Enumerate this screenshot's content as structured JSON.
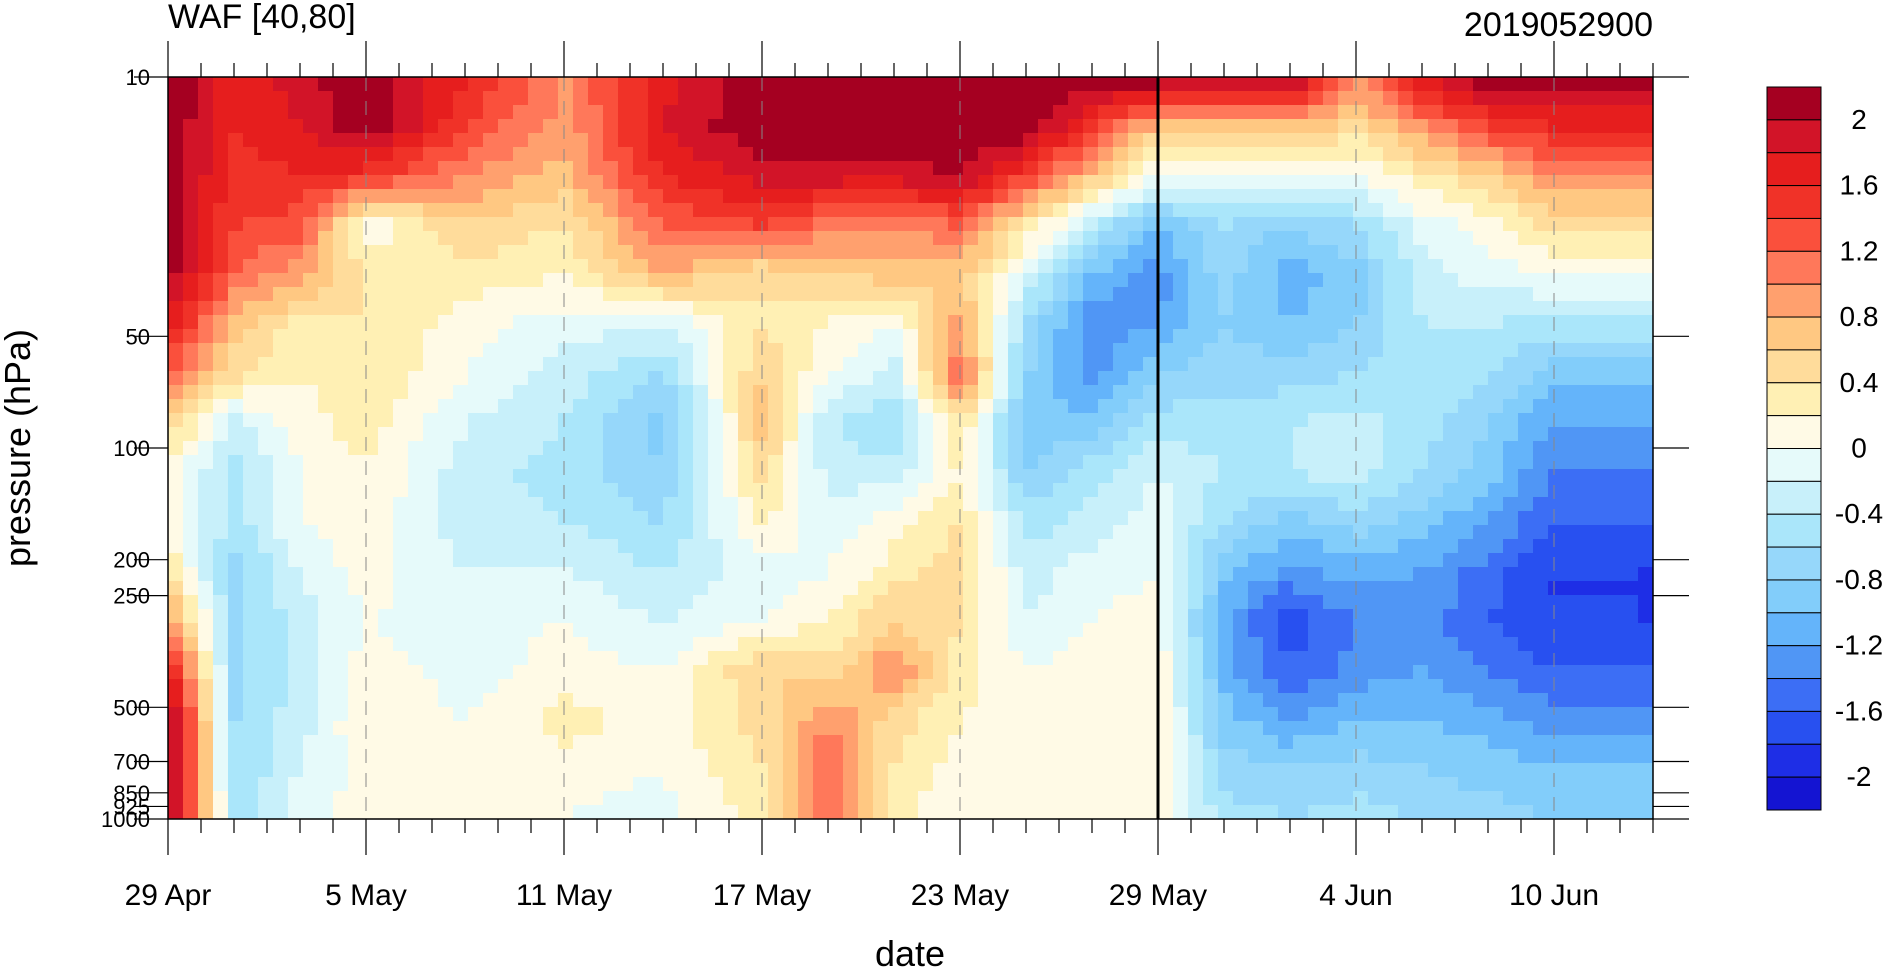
{
  "chart_data": {
    "type": "heatmap",
    "title": "WAF [40,80]",
    "subtitle": "2019052900",
    "xlabel": "date",
    "ylabel": "pressure (hPa)",
    "x_tick_labels": [
      "29 Apr",
      "5 May",
      "11 May",
      "17 May",
      "23 May",
      "29 May",
      "4 Jun",
      "10 Jun"
    ],
    "x_tick_days": [
      0,
      6,
      12,
      18,
      24,
      30,
      36,
      42
    ],
    "x_range_days": [
      0,
      45
    ],
    "y_scale": "log",
    "y_tick_labels": [
      "10",
      "50",
      "100",
      "200",
      "250",
      "500",
      "700",
      "850",
      "925",
      "1000"
    ],
    "y_tick_values": [
      10,
      50,
      100,
      200,
      250,
      500,
      700,
      850,
      925,
      1000
    ],
    "y_range": [
      10,
      1000
    ],
    "y_inverted": true,
    "forecast_line_day": 30,
    "colorbar": {
      "labels": [
        "2",
        "1.6",
        "1.2",
        "0.8",
        "0.4",
        "0",
        "-0.4",
        "-0.8",
        "-1.2",
        "-1.6",
        "-2"
      ],
      "label_values": [
        2,
        1.6,
        1.2,
        0.8,
        0.4,
        0,
        -0.4,
        -0.8,
        -1.2,
        -1.6,
        -2
      ],
      "levels": [
        -2.2,
        -2.0,
        -1.8,
        -1.6,
        -1.4,
        -1.2,
        -1.0,
        -0.8,
        -0.6,
        -0.4,
        -0.2,
        0,
        0.2,
        0.4,
        0.6,
        0.8,
        1.0,
        1.2,
        1.4,
        1.6,
        1.8,
        2.0,
        2.2
      ],
      "colors": [
        "#1414d2",
        "#1e2ee6",
        "#2850f0",
        "#3c6ef5",
        "#5096f5",
        "#64b4fa",
        "#82cdfa",
        "#96d7fa",
        "#aae6fa",
        "#c8f0fa",
        "#e6fafa",
        "#fffae6",
        "#fff0b4",
        "#ffdc9b",
        "#ffc882",
        "#ffa06e",
        "#ff785a",
        "#fa503c",
        "#f03228",
        "#e61e1e",
        "#d21428",
        "#a50021"
      ]
    },
    "waf_profiles": {
      "pressure_levels": [
        10,
        30,
        50,
        70,
        100,
        200,
        250,
        400,
        500,
        700,
        850,
        925,
        1000
      ],
      "days": [
        0,
        2,
        4,
        6,
        9,
        12,
        15,
        18,
        20,
        22,
        24,
        26,
        28,
        30,
        32,
        34,
        36,
        38,
        40,
        42,
        44,
        45
      ],
      "values": [
        [
          2.2,
          2.2,
          2.2,
          2.2,
          2.1,
          1.8,
          1.2,
          0.6,
          0.1,
          0.1,
          0.4,
          1.0,
          1.8,
          2.2,
          2.2,
          2.2
        ],
        [
          1.7,
          1.6,
          1.5,
          1.4,
          1.2,
          0.7,
          0.5,
          -0.3,
          -0.5,
          -0.5,
          -0.7,
          -0.7,
          -0.7,
          -0.6,
          -0.6,
          -0.5
        ],
        [
          1.9,
          1.8,
          1.6,
          1.3,
          0.9,
          0.3,
          0.2,
          0.1,
          0.0,
          0.0,
          -0.2,
          -0.3,
          -0.3,
          -0.3,
          -0.2,
          -0.1
        ],
        [
          2.2,
          2.2,
          1.5,
          0.0,
          0.4,
          0.4,
          0.4,
          0.3,
          0.2,
          0.1,
          0.1,
          0.0,
          0.1,
          0.2,
          0.1,
          0.1
        ],
        [
          1.6,
          1.4,
          1.0,
          0.6,
          0.3,
          0.1,
          0.0,
          -0.2,
          -0.3,
          -0.3,
          -0.2,
          -0.1,
          -0.1,
          0.0,
          0.1,
          0.1
        ],
        [
          1.0,
          0.9,
          0.7,
          0.4,
          0.2,
          -0.1,
          -0.3,
          -0.4,
          -0.5,
          -0.4,
          -0.2,
          0.0,
          0.1,
          0.3,
          0.1,
          0.0
        ],
        [
          1.7,
          1.8,
          1.6,
          1.2,
          0.8,
          -0.2,
          -0.6,
          -0.9,
          -0.8,
          -0.6,
          -0.4,
          -0.2,
          0.0,
          0.1,
          0.0,
          -0.1
        ],
        [
          2.2,
          2.2,
          1.9,
          1.4,
          0.4,
          0.4,
          0.6,
          0.7,
          0.5,
          0.2,
          -0.1,
          0.0,
          0.6,
          0.5,
          0.4,
          0.3
        ],
        [
          2.2,
          2.2,
          1.9,
          1.1,
          0.6,
          0.2,
          0.0,
          -0.4,
          -0.3,
          -0.1,
          0.0,
          0.2,
          0.5,
          1.0,
          1.2,
          1.1
        ],
        [
          2.2,
          2.2,
          1.9,
          1.0,
          0.7,
          0.0,
          -0.3,
          -0.6,
          -0.3,
          0.1,
          0.3,
          0.6,
          1.0,
          0.5,
          0.4,
          0.3
        ],
        [
          2.2,
          2.2,
          2.0,
          1.2,
          0.7,
          0.9,
          1.2,
          0.4,
          0.2,
          0.4,
          0.5,
          0.4,
          0.3,
          0.2,
          0.1,
          0.0
        ],
        [
          2.2,
          2.2,
          1.4,
          0.4,
          -0.2,
          -0.6,
          -0.8,
          -1.0,
          -0.8,
          -0.5,
          -0.3,
          -0.2,
          0.0,
          0.0,
          0.0,
          0.0
        ],
        [
          2.2,
          1.5,
          0.7,
          -0.4,
          -1.0,
          -1.4,
          -1.3,
          -0.9,
          -0.5,
          -0.3,
          -0.1,
          0.0,
          0.1,
          0.1,
          0.0,
          0.0
        ],
        [
          2.2,
          0.7,
          0.0,
          -1.0,
          -1.3,
          -1.2,
          -0.8,
          -0.5,
          -0.2,
          -0.1,
          0.0,
          0.1,
          0.2,
          0.2,
          0.1,
          0.1
        ],
        [
          2.2,
          0.6,
          0.0,
          -0.6,
          -0.7,
          -0.8,
          -0.7,
          -0.5,
          -0.4,
          -0.6,
          -0.9,
          -1.2,
          -1.1,
          -0.9,
          -0.7,
          -0.5
        ],
        [
          2.2,
          0.8,
          0.0,
          -0.8,
          -1.1,
          -1.0,
          -0.7,
          -0.4,
          -0.4,
          -0.9,
          -1.3,
          -1.7,
          -1.6,
          -1.2,
          -0.8,
          -0.6
        ],
        [
          1.0,
          0.5,
          0.0,
          -0.6,
          -0.9,
          -0.8,
          -0.6,
          -0.3,
          -0.3,
          -0.7,
          -1.1,
          -1.4,
          -1.3,
          -1.0,
          -0.7,
          -0.5
        ],
        [
          1.8,
          1.0,
          0.3,
          -0.1,
          -0.3,
          -0.4,
          -0.4,
          -0.5,
          -0.6,
          -0.9,
          -1.2,
          -1.3,
          -1.2,
          -1.0,
          -0.8,
          -0.6
        ],
        [
          2.2,
          1.4,
          0.6,
          0.1,
          -0.1,
          -0.4,
          -0.6,
          -0.8,
          -0.9,
          -1.2,
          -1.5,
          -1.6,
          -1.4,
          -1.1,
          -0.9,
          -0.7
        ],
        [
          2.2,
          1.6,
          1.0,
          0.5,
          0.0,
          -0.5,
          -0.9,
          -1.2,
          -1.4,
          -1.6,
          -1.8,
          -1.8,
          -1.6,
          -1.3,
          -1.0,
          -0.8
        ],
        [
          2.2,
          1.6,
          1.0,
          0.5,
          0.0,
          -0.5,
          -0.9,
          -1.2,
          -1.4,
          -1.6,
          -1.8,
          -1.8,
          -1.6,
          -1.3,
          -1.0,
          -0.8
        ],
        [
          2.2,
          1.6,
          1.0,
          0.5,
          0.0,
          -0.5,
          -0.9,
          -1.2,
          -1.4,
          -1.6,
          -1.8,
          -1.8,
          -1.6,
          -1.3,
          -1.0,
          -0.8
        ]
      ]
    }
  }
}
